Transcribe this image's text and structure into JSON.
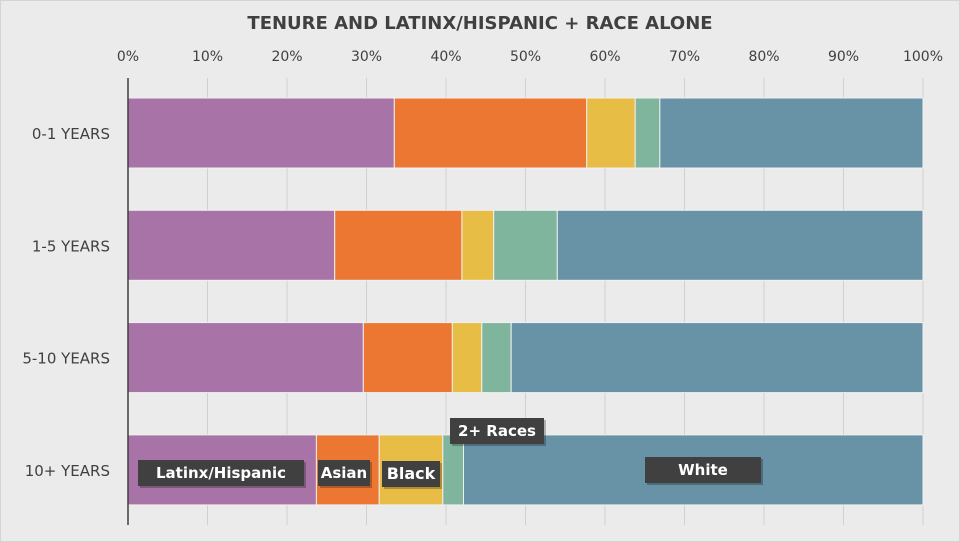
{
  "chart_data": {
    "type": "bar",
    "orientation": "horizontal",
    "stacked": "100%",
    "title": "TENURE AND LATINX/HISPANIC + RACE ALONE",
    "categories": [
      "0-1 YEARS",
      "1-5 YEARS",
      "5-10 YEARS",
      "10+ YEARS"
    ],
    "xlim": [
      0,
      100
    ],
    "xticks": [
      "0%",
      "10%",
      "20%",
      "30%",
      "40%",
      "50%",
      "60%",
      "70%",
      "80%",
      "90%",
      "100%"
    ],
    "grid": true,
    "series": [
      {
        "name": "Latinx/Hispanic",
        "color": "#a873a6",
        "values": [
          33.5,
          26.0,
          29.6,
          23.7
        ]
      },
      {
        "name": "Asian",
        "color": "#eb7732",
        "values": [
          24.2,
          16.0,
          11.2,
          7.9
        ]
      },
      {
        "name": "Black",
        "color": "#e8bd45",
        "values": [
          6.1,
          4.0,
          3.7,
          8.0
        ]
      },
      {
        "name": "2+ Races",
        "color": "#7fb59d",
        "values": [
          3.1,
          8.0,
          3.7,
          2.6
        ]
      },
      {
        "name": "White",
        "color": "#6892a6",
        "values": [
          33.1,
          46.0,
          51.8,
          57.8
        ]
      }
    ],
    "legend": "inline labels on 10+ YEARS bar"
  }
}
